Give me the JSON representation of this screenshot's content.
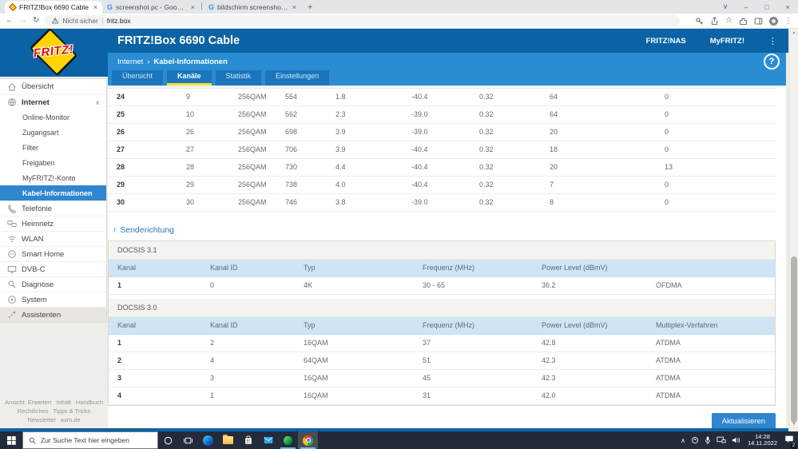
{
  "browser": {
    "tabs": [
      {
        "title": "FRITZ!Box 6690 Cable",
        "active": true
      },
      {
        "title": "screenshot pc - Google Suche",
        "active": false
      },
      {
        "title": "bildschirm screenshot erstellen -",
        "active": false
      }
    ],
    "security_label": "Nicht sicher",
    "address": "fritz.box"
  },
  "header": {
    "logo_text": "FRITZ!",
    "title": "FRITZ!Box 6690 Cable",
    "links": [
      "FRITZ!NAS",
      "MyFRITZ!"
    ]
  },
  "breadcrumb": {
    "section": "Internet",
    "page": "Kabel-Informationen"
  },
  "tabs": [
    {
      "label": "Übersicht",
      "active": false
    },
    {
      "label": "Kanäle",
      "active": true
    },
    {
      "label": "Statistik",
      "active": false
    },
    {
      "label": "Einstellungen",
      "active": false
    }
  ],
  "sidebar": {
    "items": [
      {
        "label": "Übersicht"
      },
      {
        "label": "Internet",
        "expanded": true
      },
      {
        "label": "Online-Monitor"
      },
      {
        "label": "Zugangsart"
      },
      {
        "label": "Filter"
      },
      {
        "label": "Freigaben"
      },
      {
        "label": "MyFRITZ!-Konto"
      },
      {
        "label": "Kabel-Informationen",
        "active": true
      },
      {
        "label": "Telefonie"
      },
      {
        "label": "Heimnetz"
      },
      {
        "label": "WLAN"
      },
      {
        "label": "Smart Home"
      },
      {
        "label": "DVB-C"
      },
      {
        "label": "Diagnose"
      },
      {
        "label": "System"
      },
      {
        "label": "Assistenten"
      }
    ],
    "footer": [
      "Ansicht: Erweitert",
      "Inhalt",
      "Handbuch",
      "Rechtliches",
      "Tipps & Tricks",
      "Newsletter",
      "avm.de"
    ]
  },
  "content": {
    "receive_rows": [
      [
        "24",
        "9",
        "256QAM",
        "554",
        "1.8",
        "-40.4",
        "0.32",
        "64",
        "0"
      ],
      [
        "25",
        "10",
        "256QAM",
        "562",
        "2.3",
        "-39.0",
        "0.32",
        "64",
        "0"
      ],
      [
        "26",
        "26",
        "256QAM",
        "698",
        "3.9",
        "-39.0",
        "0.32",
        "20",
        "0"
      ],
      [
        "27",
        "27",
        "256QAM",
        "706",
        "3.9",
        "-40.4",
        "0.32",
        "18",
        "0"
      ],
      [
        "28",
        "28",
        "256QAM",
        "730",
        "4.4",
        "-40.4",
        "0.32",
        "20",
        "13"
      ],
      [
        "29",
        "29",
        "256QAM",
        "738",
        "4.0",
        "-40.4",
        "0.32",
        "7",
        "0"
      ],
      [
        "30",
        "30",
        "256QAM",
        "746",
        "3.8",
        "-39.0",
        "0.32",
        "8",
        "0"
      ]
    ],
    "send_section": {
      "arrow": "↑",
      "title": "Senderichtung",
      "docsis31": {
        "label": "DOCSIS 3.1",
        "headers": [
          "Kanal",
          "Kanal ID",
          "Typ",
          "Frequenz (MHz)",
          "Power Level (dBmV)",
          ""
        ],
        "rows": [
          [
            "1",
            "0",
            "4K",
            "30 - 65",
            "36.2",
            "OFDMA"
          ]
        ]
      },
      "docsis30": {
        "label": "DOCSIS 3.0",
        "headers": [
          "Kanal",
          "Kanal ID",
          "Typ",
          "Frequenz (MHz)",
          "Power Level (dBmV)",
          "Multiplex-Verfahren"
        ],
        "rows": [
          [
            "1",
            "2",
            "16QAM",
            "37",
            "42.8",
            "ATDMA"
          ],
          [
            "2",
            "4",
            "64QAM",
            "51",
            "42.3",
            "ATDMA"
          ],
          [
            "3",
            "3",
            "16QAM",
            "45",
            "42.3",
            "ATDMA"
          ],
          [
            "4",
            "1",
            "16QAM",
            "31",
            "42.0",
            "ATDMA"
          ]
        ]
      }
    },
    "refresh_label": "Aktualisieren"
  },
  "taskbar": {
    "search_placeholder": "Zur Suche Text hier eingeben",
    "time": "14:28",
    "date": "14.11.2022",
    "notification_count": "2"
  },
  "colors": {
    "header_blue": "#0b63a6",
    "subheader_blue": "#2a8dd4",
    "tab_blue": "#1b76bd",
    "accent_yellow": "#f4e32a",
    "active_item_blue": "#2e86cf",
    "table_header_bg": "#cfe5f6",
    "logo_yellow": "#ffd400",
    "logo_red": "#d51317",
    "taskbar_bg": "#232b3a"
  },
  "icons": {
    "close": "×",
    "plus": "+",
    "chevron_down": "∨",
    "minimize": "–",
    "maximize": "□",
    "back": "←",
    "forward": "→",
    "reload": "↻",
    "star": "☆",
    "menu_dots": "⋮",
    "question": "?",
    "crumb_sep": "›",
    "chevron_up": "∧",
    "google_g": "G",
    "scroll_up": "▲",
    "scroll_down": "▼",
    "tray_chevron": "∧"
  }
}
